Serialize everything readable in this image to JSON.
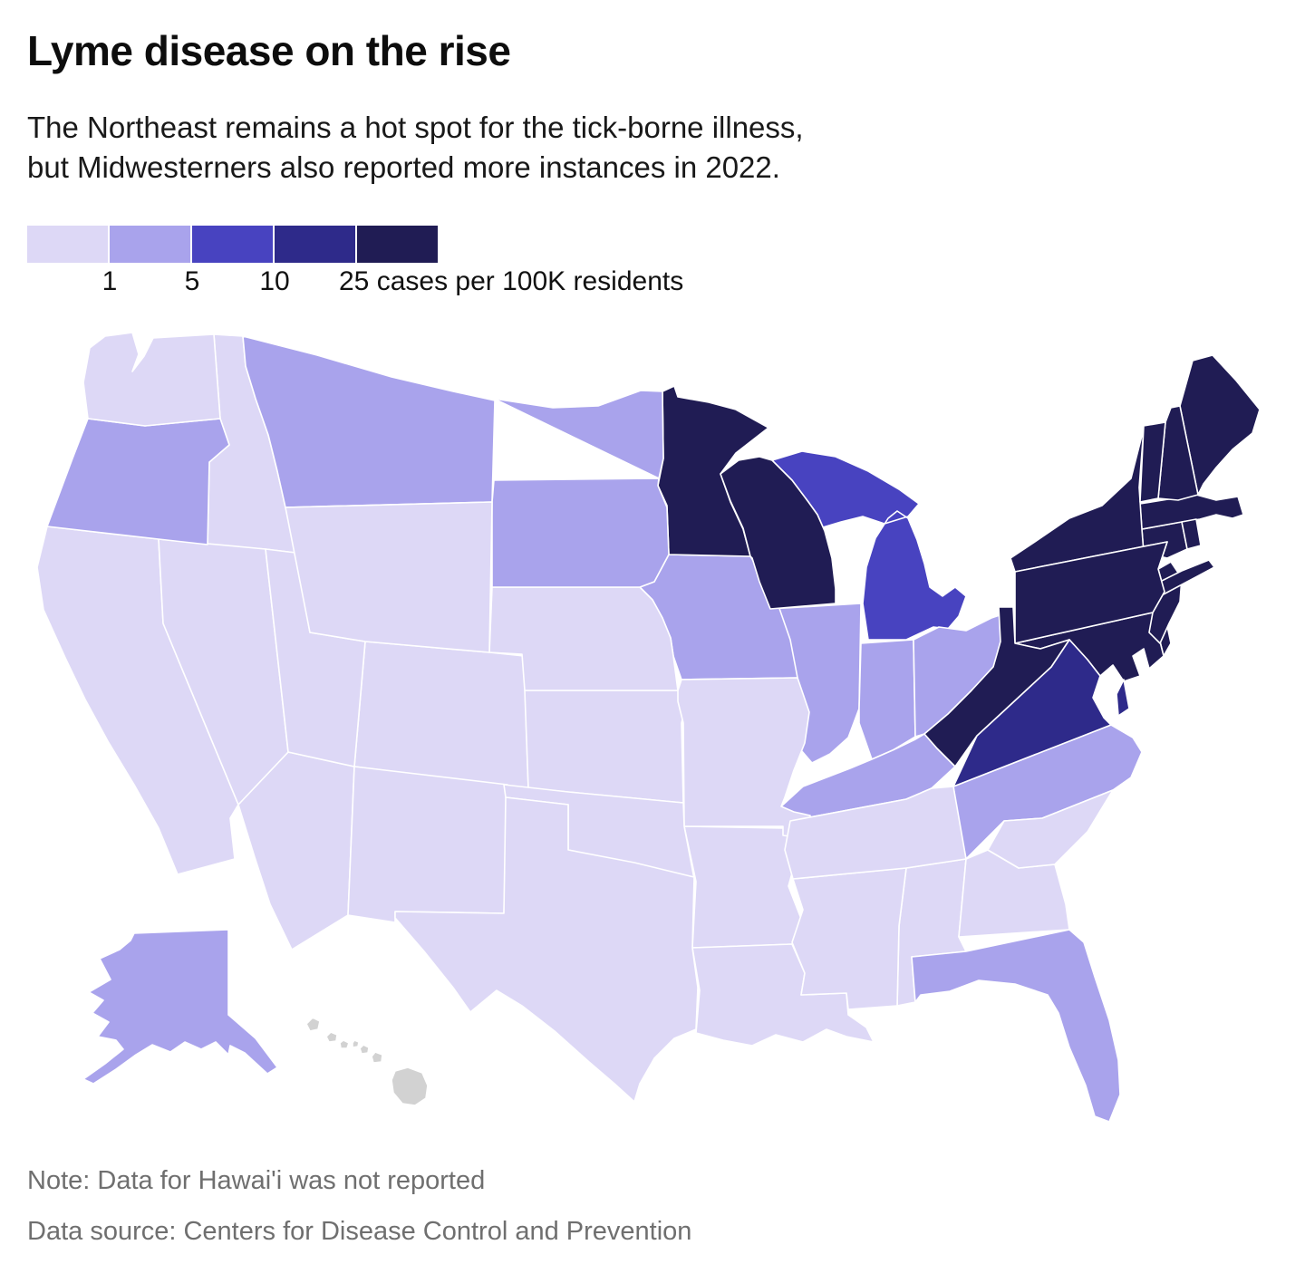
{
  "header": {
    "title": "Lyme disease on the rise",
    "subtitle": [
      "The Northeast remains a hot spot for the tick-borne illness,",
      "but Midwesterners also reported more instances in 2022."
    ]
  },
  "legend": {
    "colors": [
      "#ddd8f6",
      "#a9a3ec",
      "#4843c0",
      "#2e2a8a",
      "#201c54"
    ],
    "no_data_color": "#d2d2d2",
    "tick_labels": [
      "1",
      "5",
      "10"
    ],
    "last_tick_label": "25 cases per 100K residents"
  },
  "notes": {
    "note": "Note: Data for Hawai'i was not reported",
    "source": "Data source: Centers for Disease Control and Prevention"
  },
  "chart_data": {
    "type": "choropleth",
    "title": "Lyme disease on the rise",
    "unit": "cases per 100K residents",
    "legend_thresholds": [
      1,
      5,
      10,
      25
    ],
    "category_ranges": [
      "<1",
      "1–5",
      "5–10",
      "10–25",
      "25+"
    ],
    "states": [
      {
        "name": "Alabama",
        "abbr": "AL",
        "category": 0,
        "range": "<1"
      },
      {
        "name": "Alaska",
        "abbr": "AK",
        "category": 1,
        "range": "1–5"
      },
      {
        "name": "Arizona",
        "abbr": "AZ",
        "category": 0,
        "range": "<1"
      },
      {
        "name": "Arkansas",
        "abbr": "AR",
        "category": 0,
        "range": "<1"
      },
      {
        "name": "California",
        "abbr": "CA",
        "category": 0,
        "range": "<1"
      },
      {
        "name": "Colorado",
        "abbr": "CO",
        "category": 0,
        "range": "<1"
      },
      {
        "name": "Connecticut",
        "abbr": "CT",
        "category": 4,
        "range": "25+"
      },
      {
        "name": "Delaware",
        "abbr": "DE",
        "category": 4,
        "range": "25+"
      },
      {
        "name": "Florida",
        "abbr": "FL",
        "category": 1,
        "range": "1–5"
      },
      {
        "name": "Georgia",
        "abbr": "GA",
        "category": 0,
        "range": "<1"
      },
      {
        "name": "Hawaii",
        "abbr": "HI",
        "category": null,
        "range": "No data"
      },
      {
        "name": "Idaho",
        "abbr": "ID",
        "category": 0,
        "range": "<1"
      },
      {
        "name": "Illinois",
        "abbr": "IL",
        "category": 1,
        "range": "1–5"
      },
      {
        "name": "Indiana",
        "abbr": "IN",
        "category": 1,
        "range": "1–5"
      },
      {
        "name": "Iowa",
        "abbr": "IA",
        "category": 1,
        "range": "1–5"
      },
      {
        "name": "Kansas",
        "abbr": "KS",
        "category": 0,
        "range": "<1"
      },
      {
        "name": "Kentucky",
        "abbr": "KY",
        "category": 1,
        "range": "1–5"
      },
      {
        "name": "Louisiana",
        "abbr": "LA",
        "category": 0,
        "range": "<1"
      },
      {
        "name": "Maine",
        "abbr": "ME",
        "category": 4,
        "range": "25+"
      },
      {
        "name": "Maryland",
        "abbr": "MD",
        "category": 4,
        "range": "25+"
      },
      {
        "name": "Massachusetts",
        "abbr": "MA",
        "category": 4,
        "range": "25+"
      },
      {
        "name": "Michigan",
        "abbr": "MI",
        "category": 2,
        "range": "5–10"
      },
      {
        "name": "Minnesota",
        "abbr": "MN",
        "category": 4,
        "range": "25+"
      },
      {
        "name": "Mississippi",
        "abbr": "MS",
        "category": 0,
        "range": "<1"
      },
      {
        "name": "Missouri",
        "abbr": "MO",
        "category": 0,
        "range": "<1"
      },
      {
        "name": "Montana",
        "abbr": "MT",
        "category": 1,
        "range": "1–5"
      },
      {
        "name": "Nebraska",
        "abbr": "NE",
        "category": 0,
        "range": "<1"
      },
      {
        "name": "Nevada",
        "abbr": "NV",
        "category": 0,
        "range": "<1"
      },
      {
        "name": "New Hampshire",
        "abbr": "NH",
        "category": 4,
        "range": "25+"
      },
      {
        "name": "New Jersey",
        "abbr": "NJ",
        "category": 4,
        "range": "25+"
      },
      {
        "name": "New Mexico",
        "abbr": "NM",
        "category": 0,
        "range": "<1"
      },
      {
        "name": "New York",
        "abbr": "NY",
        "category": 4,
        "range": "25+"
      },
      {
        "name": "North Carolina",
        "abbr": "NC",
        "category": 1,
        "range": "1–5"
      },
      {
        "name": "North Dakota",
        "abbr": "ND",
        "category": 1,
        "range": "1–5"
      },
      {
        "name": "Ohio",
        "abbr": "OH",
        "category": 1,
        "range": "1–5"
      },
      {
        "name": "Oklahoma",
        "abbr": "OK",
        "category": 0,
        "range": "<1"
      },
      {
        "name": "Oregon",
        "abbr": "OR",
        "category": 1,
        "range": "1–5"
      },
      {
        "name": "Pennsylvania",
        "abbr": "PA",
        "category": 4,
        "range": "25+"
      },
      {
        "name": "Rhode Island",
        "abbr": "RI",
        "category": 4,
        "range": "25+"
      },
      {
        "name": "South Carolina",
        "abbr": "SC",
        "category": 0,
        "range": "<1"
      },
      {
        "name": "South Dakota",
        "abbr": "SD",
        "category": 1,
        "range": "1–5"
      },
      {
        "name": "Tennessee",
        "abbr": "TN",
        "category": 0,
        "range": "<1"
      },
      {
        "name": "Texas",
        "abbr": "TX",
        "category": 0,
        "range": "<1"
      },
      {
        "name": "Utah",
        "abbr": "UT",
        "category": 0,
        "range": "<1"
      },
      {
        "name": "Vermont",
        "abbr": "VT",
        "category": 4,
        "range": "25+"
      },
      {
        "name": "Virginia",
        "abbr": "VA",
        "category": 3,
        "range": "10–25"
      },
      {
        "name": "Washington",
        "abbr": "WA",
        "category": 0,
        "range": "<1"
      },
      {
        "name": "West Virginia",
        "abbr": "WV",
        "category": 4,
        "range": "25+"
      },
      {
        "name": "Wisconsin",
        "abbr": "WI",
        "category": 4,
        "range": "25+"
      },
      {
        "name": "Wyoming",
        "abbr": "WY",
        "category": 0,
        "range": "<1"
      }
    ]
  }
}
